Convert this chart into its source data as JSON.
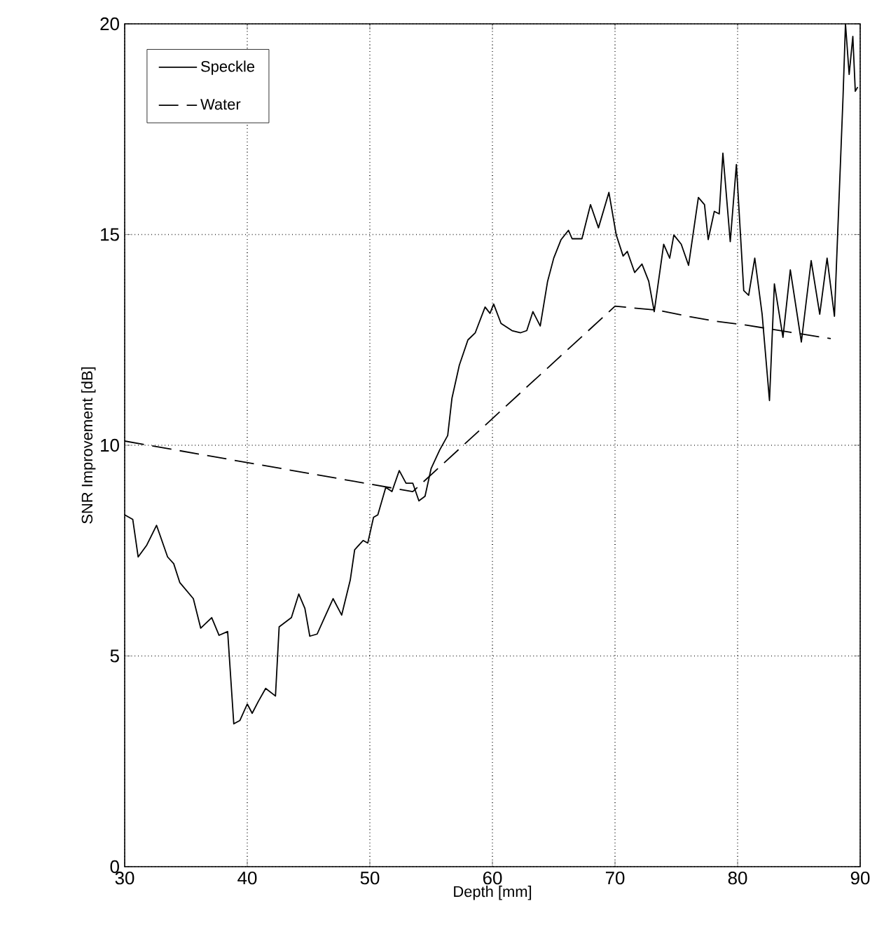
{
  "chart_data": {
    "type": "line",
    "xlabel": "Depth [mm]",
    "ylabel": "SNR Improvement [dB]",
    "xlim": [
      30,
      90
    ],
    "ylim": [
      0,
      20
    ],
    "xticks": [
      30,
      40,
      50,
      60,
      70,
      80,
      90
    ],
    "yticks": [
      0,
      5,
      10,
      15,
      20
    ],
    "grid": true,
    "legend": "top left",
    "series": [
      {
        "name": "Speckle",
        "color": "#000000",
        "line_style": "solid",
        "x": [
          30,
          30.66,
          31.1,
          31.8,
          32.6,
          33.5,
          34.0,
          34.5,
          35.6,
          36.2,
          37.1,
          37.7,
          38.4,
          38.9,
          39.4,
          40.0,
          40.4,
          40.9,
          41.5,
          42.3,
          42.6,
          43.6,
          44.2,
          44.7,
          45.1,
          45.7,
          46.3,
          47.0,
          47.7,
          48.4,
          48.76,
          49.45,
          49.83,
          50.3,
          50.65,
          51.3,
          51.8,
          52.4,
          52.95,
          53.5,
          54.0,
          54.5,
          55.0,
          55.7,
          56.35,
          56.7,
          57.3,
          58.0,
          58.6,
          59.4,
          59.8,
          60.1,
          60.7,
          61.6,
          62.3,
          62.8,
          63.3,
          63.9,
          64.5,
          65.0,
          65.6,
          66.2,
          66.5,
          67.3,
          68.0,
          68.65,
          69.5,
          70.1,
          70.66,
          71.0,
          71.6,
          72.2,
          72.75,
          73.2,
          73.97,
          74.46,
          74.8,
          75.4,
          76.0,
          76.8,
          77.3,
          77.6,
          78.1,
          78.5,
          78.8,
          79.4,
          79.9,
          80.5,
          80.9,
          81.4,
          82.0,
          82.6,
          83.0,
          83.7,
          84.3,
          85.2,
          86.0,
          86.7,
          87.3,
          87.9,
          88.6,
          88.8,
          89.1,
          89.4,
          89.6,
          89.8
        ],
        "values": [
          8.35,
          8.24,
          7.35,
          7.63,
          8.1,
          7.35,
          7.19,
          6.74,
          6.36,
          5.66,
          5.91,
          5.49,
          5.58,
          3.39,
          3.47,
          3.86,
          3.64,
          3.92,
          4.23,
          4.05,
          5.69,
          5.91,
          6.47,
          6.13,
          5.47,
          5.52,
          5.91,
          6.36,
          5.97,
          6.8,
          7.52,
          7.74,
          7.68,
          8.29,
          8.35,
          9.0,
          8.9,
          9.4,
          9.1,
          9.1,
          8.68,
          8.79,
          9.45,
          9.89,
          10.23,
          11.12,
          11.9,
          12.5,
          12.67,
          13.28,
          13.13,
          13.35,
          12.89,
          12.72,
          12.67,
          12.72,
          13.17,
          12.83,
          13.89,
          14.44,
          14.88,
          15.1,
          14.9,
          14.9,
          15.71,
          15.16,
          16.0,
          14.99,
          14.49,
          14.6,
          14.1,
          14.3,
          13.89,
          13.17,
          14.77,
          14.44,
          14.99,
          14.77,
          14.27,
          15.88,
          15.71,
          14.88,
          15.55,
          15.49,
          16.93,
          14.83,
          16.66,
          13.67,
          13.56,
          14.44,
          13.11,
          11.06,
          13.83,
          12.56,
          14.16,
          12.45,
          14.38,
          13.11,
          14.44,
          13.06,
          18.26,
          20.0,
          18.8,
          19.7,
          18.4,
          18.5
        ]
      },
      {
        "name": "Water",
        "color": "#000000",
        "line_style": "dashed",
        "x": [
          30,
          53.5,
          70,
          73.6,
          76.1,
          78.3,
          80.7,
          87.6
        ],
        "values": [
          10.1,
          8.9,
          13.3,
          13.2,
          13.05,
          12.94,
          12.85,
          12.53
        ]
      }
    ]
  }
}
